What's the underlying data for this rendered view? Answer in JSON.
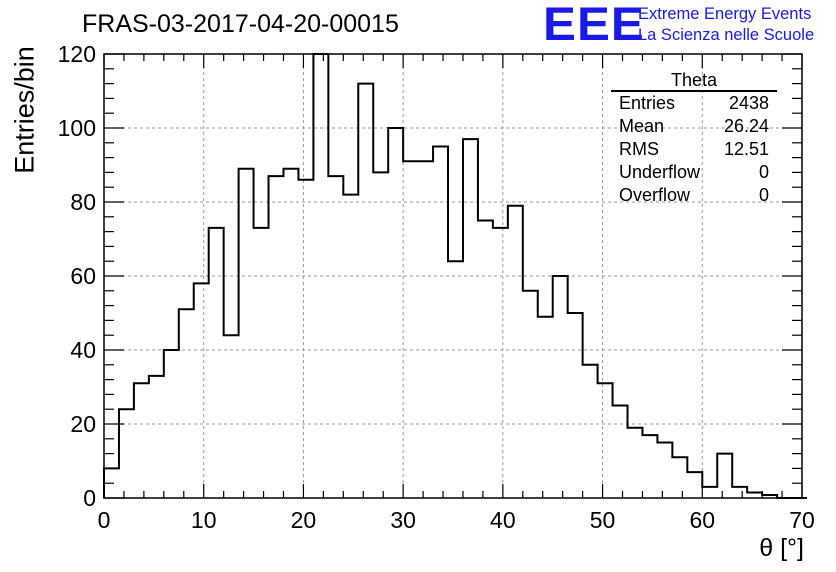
{
  "chart_data": {
    "type": "bar",
    "title": "FRAS-03-2017-04-20-00015",
    "xlabel": "θ [°]",
    "ylabel": "Entries/bin",
    "xlim": [
      0,
      70
    ],
    "ylim": [
      0,
      120
    ],
    "xticks": [
      "0",
      "10",
      "20",
      "30",
      "40",
      "50",
      "60",
      "70"
    ],
    "yticks": [
      "0",
      "20",
      "40",
      "60",
      "80",
      "100",
      "120"
    ],
    "grid": true,
    "bin_width": 1.5,
    "bin_edges_start": 0,
    "values": [
      8,
      24,
      31,
      33,
      40,
      51,
      58,
      73,
      44,
      89,
      73,
      87,
      89,
      86,
      120,
      87,
      82,
      112,
      88,
      100,
      91,
      91,
      95,
      64,
      97,
      75,
      73,
      79,
      56,
      49,
      60,
      50,
      36,
      31,
      25,
      19,
      17,
      15,
      11,
      7,
      3,
      12,
      3,
      1.5,
      0.8,
      0,
      0
    ]
  },
  "stats": {
    "title": "Theta",
    "rows": [
      {
        "label": "Entries",
        "value": "2438"
      },
      {
        "label": "Mean",
        "value": "26.24"
      },
      {
        "label": "RMS",
        "value": "12.51"
      },
      {
        "label": "Underflow",
        "value": "0"
      },
      {
        "label": "Overflow",
        "value": "0"
      }
    ]
  },
  "logo": {
    "mark": "EEE",
    "line1": "Extreme Energy Events",
    "line2": "La Scienza nelle Scuole",
    "color": "#1a1ae6"
  }
}
